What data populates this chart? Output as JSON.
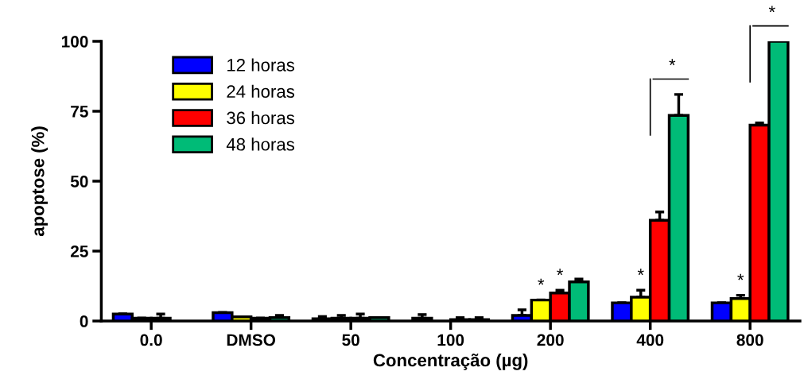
{
  "chart_data": {
    "type": "bar",
    "xlabel": "Concentração (µg)",
    "ylabel": "apoptose (%)",
    "categories": [
      "0.0",
      "DMSO",
      "50",
      "100",
      "200",
      "400",
      "800"
    ],
    "series": [
      {
        "name": "12 horas",
        "color": "#0000ff",
        "values": [
          2.5,
          3,
          0.8,
          1,
          2,
          6.5,
          6.5
        ],
        "errors": [
          null,
          null,
          0.8,
          1.3,
          2,
          null,
          null
        ]
      },
      {
        "name": "24 horas",
        "color": "#ffff00",
        "values": [
          1,
          1.5,
          1,
          null,
          7.5,
          8.5,
          8
        ],
        "errors": [
          null,
          null,
          1,
          null,
          null,
          2.5,
          1.2
        ]
      },
      {
        "name": "36 horas",
        "color": "#ff0000",
        "values": [
          1,
          1,
          1,
          0.5,
          10,
          36,
          70
        ],
        "errors": [
          1.5,
          null,
          1.5,
          0.7,
          1,
          3,
          0.8
        ]
      },
      {
        "name": "48 horas",
        "color": "#00bb77",
        "values": [
          null,
          1.2,
          1.2,
          0.5,
          14,
          73.5,
          100
        ],
        "errors": [
          null,
          0.8,
          null,
          0.7,
          1,
          7.5,
          null
        ]
      }
    ],
    "ylim": [
      0,
      100
    ],
    "yticks": [
      0,
      25,
      50,
      75,
      100
    ],
    "grid": false,
    "legend": "top left",
    "annotations": [
      {
        "text": "*",
        "x": "200",
        "y": 7.5
      },
      {
        "text": "*",
        "x": "200",
        "y": 11
      },
      {
        "text": "*",
        "x": "400",
        "y": 11
      },
      "*",
      {
        "text": "*",
        "x": "800",
        "y": 9.2
      },
      "*"
    ]
  }
}
